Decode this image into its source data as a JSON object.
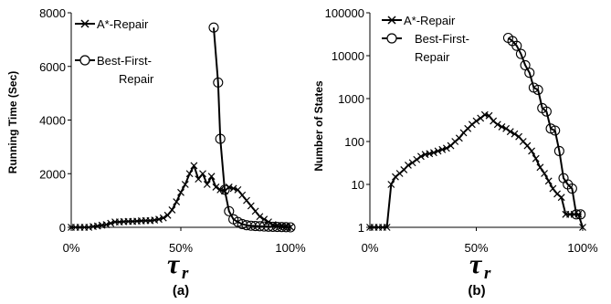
{
  "figure": {
    "panels": [
      {
        "id": "a",
        "caption": "(a)"
      },
      {
        "id": "b",
        "caption": "(b)"
      }
    ]
  },
  "chart_data": [
    {
      "type": "line",
      "caption": "(a)",
      "ylabel": "Running Time (Sec)",
      "xlabel_symbol": "τ",
      "xlabel_subscript": "r",
      "xlim": [
        0,
        100
      ],
      "ylim": [
        0,
        8000
      ],
      "x_ticks": [
        "0%",
        "50%",
        "100%"
      ],
      "y_ticks": [
        "0",
        "2000",
        "4000",
        "6000",
        "8000"
      ],
      "legend_position": "top-left",
      "series": [
        {
          "name": "A*-Repair",
          "marker": "x",
          "x": [
            0,
            2,
            4,
            6,
            8,
            10,
            12,
            14,
            16,
            18,
            20,
            22,
            24,
            26,
            28,
            30,
            32,
            34,
            36,
            38,
            40,
            42,
            44,
            46,
            48,
            50,
            52,
            54,
            56,
            58,
            60,
            62,
            64,
            66,
            68,
            70,
            72,
            74,
            76,
            78,
            80,
            82,
            84,
            86,
            88,
            90,
            92,
            94,
            96,
            98,
            100
          ],
          "y": [
            0,
            0,
            0,
            0,
            0,
            30,
            50,
            80,
            100,
            150,
            200,
            200,
            210,
            220,
            220,
            230,
            240,
            250,
            250,
            270,
            300,
            350,
            450,
            650,
            950,
            1300,
            1600,
            2000,
            2300,
            1800,
            2000,
            1600,
            1900,
            1500,
            1400,
            1350,
            1500,
            1450,
            1400,
            1200,
            1000,
            800,
            600,
            400,
            300,
            200,
            100,
            60,
            40,
            20,
            10
          ]
        },
        {
          "name": "Best-First-Repair",
          "marker": "o",
          "x": [
            65,
            67,
            68,
            70,
            72,
            74,
            76,
            78,
            80,
            82,
            84,
            86,
            88,
            90,
            92,
            94,
            96,
            98,
            100
          ],
          "y": [
            7450,
            5400,
            3300,
            1400,
            600,
            300,
            200,
            120,
            80,
            60,
            50,
            40,
            30,
            25,
            20,
            15,
            10,
            5,
            0
          ]
        }
      ]
    },
    {
      "type": "line",
      "caption": "(b)",
      "ylabel": "Number of States",
      "xlabel_symbol": "τ",
      "xlabel_subscript": "r",
      "xlim": [
        0,
        100
      ],
      "ylim": [
        1,
        100000
      ],
      "y_scale": "log",
      "x_ticks": [
        "0%",
        "50%",
        "100%"
      ],
      "y_ticks": [
        "1",
        "10",
        "100",
        "1000",
        "10000",
        "100000"
      ],
      "legend_position": "top-left",
      "series": [
        {
          "name": "A*-Repair",
          "marker": "x",
          "x": [
            0,
            2,
            4,
            6,
            8,
            10,
            12,
            14,
            16,
            18,
            20,
            22,
            24,
            26,
            28,
            30,
            32,
            34,
            36,
            38,
            40,
            42,
            44,
            46,
            48,
            50,
            52,
            54,
            56,
            58,
            60,
            62,
            64,
            66,
            68,
            70,
            72,
            74,
            76,
            78,
            80,
            82,
            84,
            86,
            88,
            90,
            92,
            94,
            96,
            98,
            100
          ],
          "y": [
            1,
            1,
            1,
            1,
            1,
            10,
            15,
            18,
            22,
            28,
            32,
            38,
            45,
            50,
            52,
            55,
            60,
            65,
            70,
            80,
            100,
            120,
            160,
            200,
            250,
            300,
            350,
            420,
            400,
            300,
            250,
            220,
            200,
            170,
            150,
            130,
            100,
            80,
            60,
            40,
            25,
            18,
            12,
            8,
            6,
            5,
            2,
            2,
            2,
            2,
            1
          ]
        },
        {
          "name": "Best-First-Repair",
          "marker": "o",
          "x": [
            65,
            67,
            69,
            71,
            73,
            75,
            77,
            79,
            81,
            83,
            85,
            87,
            89,
            91,
            93,
            95,
            97,
            99
          ],
          "y": [
            26000,
            22000,
            17000,
            11000,
            6000,
            4000,
            1800,
            1600,
            600,
            500,
            200,
            180,
            60,
            14,
            10,
            8,
            2,
            2
          ]
        }
      ]
    }
  ]
}
